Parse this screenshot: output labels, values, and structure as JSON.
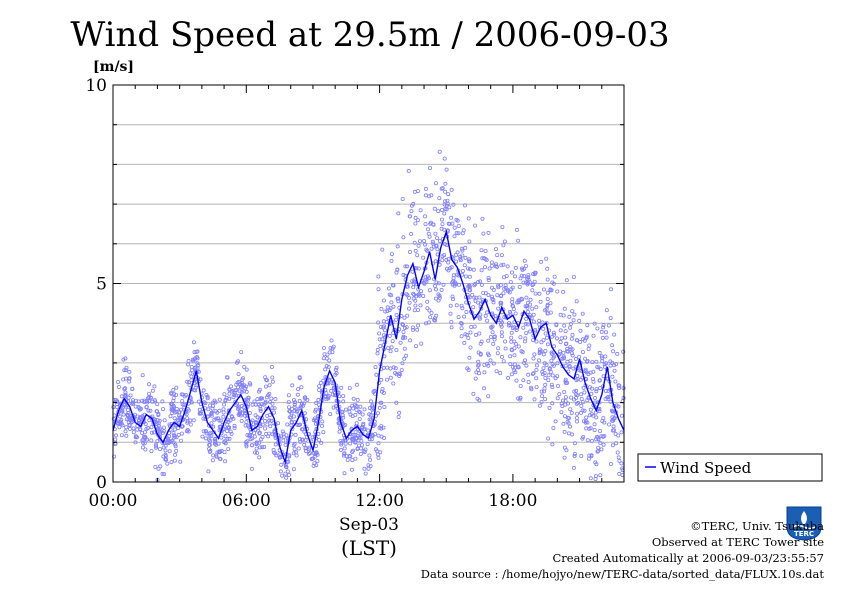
{
  "chart_data": {
    "type": "scatter",
    "title": "Wind Speed at 29.5m / 2006-09-03",
    "ylabel": "[m/s]",
    "ylim": [
      0,
      10
    ],
    "yticks": [
      "0",
      "5",
      "10"
    ],
    "xlim_hours": [
      0,
      23
    ],
    "xticks": [
      "00:00",
      "06:00",
      "12:00",
      "18:00"
    ],
    "xtick_hours": [
      0,
      6,
      12,
      18
    ],
    "date_label": "Sep-03",
    "tz_label": "(LST)",
    "grid": true,
    "legend": {
      "position": "right",
      "entries": [
        "Wind Speed"
      ]
    },
    "series": [
      {
        "name": "Wind Speed",
        "type": "line",
        "color": "#0000ff",
        "x": [
          0,
          0.25,
          0.5,
          0.75,
          1,
          1.25,
          1.5,
          1.75,
          2,
          2.25,
          2.5,
          2.75,
          3,
          3.25,
          3.5,
          3.75,
          4,
          4.25,
          4.5,
          4.75,
          5,
          5.25,
          5.5,
          5.75,
          6,
          6.25,
          6.5,
          6.75,
          7,
          7.25,
          7.5,
          7.75,
          8,
          8.25,
          8.5,
          8.75,
          9,
          9.25,
          9.5,
          9.75,
          10,
          10.25,
          10.5,
          10.75,
          11,
          11.25,
          11.5,
          11.75,
          12,
          12.25,
          12.5,
          12.75,
          13,
          13.25,
          13.5,
          13.75,
          14,
          14.25,
          14.5,
          14.75,
          15,
          15.25,
          15.5,
          15.75,
          16,
          16.25,
          16.5,
          16.75,
          17,
          17.25,
          17.5,
          17.75,
          18,
          18.25,
          18.5,
          18.75,
          19,
          19.25,
          19.5,
          19.75,
          20,
          20.25,
          20.5,
          20.75,
          21,
          21.25,
          21.5,
          21.75,
          22,
          22.25,
          22.5,
          22.75,
          23
        ],
        "values": [
          1.3,
          1.8,
          2.1,
          1.9,
          1.5,
          1.4,
          1.7,
          1.6,
          1.2,
          1.0,
          1.3,
          1.5,
          1.4,
          1.8,
          2.3,
          2.8,
          2.0,
          1.5,
          1.3,
          1.1,
          1.5,
          1.8,
          2.0,
          2.2,
          1.9,
          1.3,
          1.4,
          1.7,
          1.9,
          1.6,
          0.9,
          0.5,
          1.3,
          1.5,
          1.8,
          1.2,
          0.8,
          1.5,
          2.4,
          2.8,
          2.5,
          1.5,
          1.1,
          1.3,
          1.4,
          1.2,
          1.1,
          1.6,
          2.8,
          3.5,
          4.2,
          3.6,
          4.6,
          5.2,
          5.5,
          4.9,
          5.3,
          5.8,
          5.1,
          5.9,
          6.3,
          5.6,
          5.4,
          5.0,
          4.5,
          4.1,
          4.3,
          4.6,
          4.2,
          4.0,
          4.4,
          4.1,
          4.2,
          3.9,
          4.3,
          4.1,
          3.6,
          3.9,
          4.0,
          3.4,
          3.2,
          2.9,
          2.7,
          2.6,
          3.1,
          2.5,
          2.1,
          1.8,
          2.2,
          2.9,
          2.0,
          1.6,
          1.3
        ]
      },
      {
        "name": "samples",
        "type": "scatter",
        "color": "#8080ff"
      }
    ]
  },
  "credits": {
    "copyright": "©TERC, Univ. Tsukuba",
    "site": "Observed at TERC Tower site",
    "created": "Created Automatically at 2006-09-03/23:55:57",
    "source": "Data source : /home/hojyo/new/TERC-data/sorted_data/FLUX.10s.dat"
  },
  "logo": {
    "name": "terc-logo",
    "text": "TERC"
  }
}
